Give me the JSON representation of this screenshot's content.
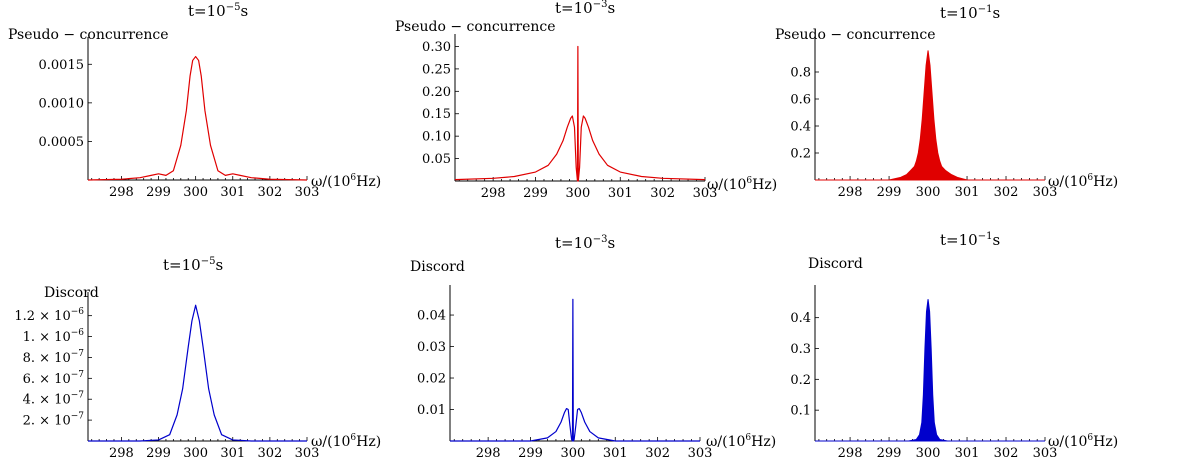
{
  "chart_data": [
    {
      "type": "line",
      "title_base": "t=10",
      "title_exp": "−5",
      "title_unit": "s",
      "ylabel": "Pseudo − concurrence",
      "xlabel_base": "ω/(10",
      "xlabel_exp": "6",
      "xlabel_unit": "Hz)",
      "xlim": [
        297.1,
        303.0
      ],
      "ylim": [
        0,
        0.00175
      ],
      "xticks": [
        298,
        299,
        300,
        301,
        302,
        303
      ],
      "yticks": [
        {
          "v": 0.0005,
          "t": "0.0005"
        },
        {
          "v": 0.001,
          "t": "0.0010"
        },
        {
          "v": 0.0015,
          "t": "0.0015"
        }
      ],
      "color": "#e00000",
      "series": [
        {
          "x": [
            297.1,
            298.0,
            298.5,
            298.8,
            299.0,
            299.2,
            299.4,
            299.6,
            299.75,
            299.85,
            299.92,
            300.0,
            300.08,
            300.15,
            300.25,
            300.4,
            300.6,
            300.8,
            301.0,
            301.2,
            301.5,
            302.0,
            303.0
          ],
          "y": [
            0.0,
            1e-05,
            3e-05,
            6e-05,
            8e-05,
            6e-05,
            0.00012,
            0.00045,
            0.0009,
            0.00135,
            0.00155,
            0.0016,
            0.00155,
            0.00135,
            0.0009,
            0.00045,
            0.00012,
            6e-05,
            8e-05,
            6e-05,
            3e-05,
            1e-05,
            0.0
          ]
        }
      ]
    },
    {
      "type": "line",
      "title_base": "t=10",
      "title_exp": "−3",
      "title_unit": "s",
      "ylabel": "Pseudo − concurrence",
      "xlabel_base": "ω/(10",
      "xlabel_exp": "6",
      "xlabel_unit": "Hz)",
      "xlim": [
        297.1,
        303.0
      ],
      "ylim": [
        0,
        0.31
      ],
      "xticks": [
        298,
        299,
        300,
        301,
        302,
        303
      ],
      "yticks": [
        {
          "v": 0.05,
          "t": "0.05"
        },
        {
          "v": 0.1,
          "t": "0.10"
        },
        {
          "v": 0.15,
          "t": "0.15"
        },
        {
          "v": 0.2,
          "t": "0.20"
        },
        {
          "v": 0.25,
          "t": "0.25"
        },
        {
          "v": 0.3,
          "t": "0.30"
        }
      ],
      "color": "#e00000",
      "series": [
        {
          "x": [
            297.1,
            298.0,
            298.5,
            299.0,
            299.3,
            299.5,
            299.65,
            299.75,
            299.83,
            299.87,
            299.92,
            299.96,
            299.99,
            300.0,
            300.01,
            300.04,
            300.08,
            300.13,
            300.17,
            300.25,
            300.35,
            300.5,
            300.7,
            301.0,
            301.5,
            302.0,
            303.0
          ],
          "y": [
            0.003,
            0.006,
            0.01,
            0.02,
            0.035,
            0.06,
            0.09,
            0.12,
            0.14,
            0.145,
            0.12,
            0.03,
            0.0,
            0.3,
            0.0,
            0.03,
            0.12,
            0.145,
            0.14,
            0.12,
            0.09,
            0.06,
            0.035,
            0.02,
            0.01,
            0.006,
            0.003
          ]
        }
      ]
    },
    {
      "type": "line",
      "title_base": "t=10",
      "title_exp": "−1",
      "title_unit": "s",
      "ylabel": "Pseudo − concurrence",
      "xlabel_base": "ω/(10",
      "xlabel_exp": "6",
      "xlabel_unit": "Hz)",
      "xlim": [
        297.1,
        303.0
      ],
      "ylim": [
        0,
        1.0
      ],
      "xticks": [
        298,
        299,
        300,
        301,
        302,
        303
      ],
      "yticks": [
        {
          "v": 0.2,
          "t": "0.2"
        },
        {
          "v": 0.4,
          "t": "0.4"
        },
        {
          "v": 0.6,
          "t": "0.6"
        },
        {
          "v": 0.8,
          "t": "0.8"
        }
      ],
      "color": "#e00000",
      "fill": true,
      "series": [
        {
          "x": [
            297.1,
            299.0,
            299.3,
            299.45,
            299.55,
            299.65,
            299.7,
            299.75,
            299.8,
            299.85,
            299.9,
            299.95,
            300.0,
            300.05,
            300.1,
            300.15,
            300.2,
            300.25,
            300.3,
            300.35,
            300.45,
            300.6,
            300.75,
            301.0,
            303.0
          ],
          "y": [
            0.0,
            0.0,
            0.02,
            0.04,
            0.07,
            0.1,
            0.14,
            0.2,
            0.3,
            0.45,
            0.65,
            0.85,
            0.96,
            0.85,
            0.65,
            0.45,
            0.3,
            0.2,
            0.14,
            0.1,
            0.07,
            0.04,
            0.02,
            0.0,
            0.0
          ]
        }
      ]
    },
    {
      "type": "line",
      "title_base": "t=10",
      "title_exp": "−5",
      "title_unit": "s",
      "ylabel": "Discord",
      "xlabel_base": "ω/(10",
      "xlabel_exp": "6",
      "xlabel_unit": "Hz)",
      "xlim": [
        297.1,
        303.0
      ],
      "ylim": [
        0,
        1.35e-06
      ],
      "xticks": [
        298,
        299,
        300,
        301,
        302,
        303
      ],
      "yticks": [
        {
          "v": 2e-07,
          "m": "2.",
          "e": "−7"
        },
        {
          "v": 4e-07,
          "m": "4.",
          "e": "−7"
        },
        {
          "v": 6e-07,
          "m": "6.",
          "e": "−7"
        },
        {
          "v": 8e-07,
          "m": "8.",
          "e": "−7"
        },
        {
          "v": 1e-06,
          "m": "1.",
          "e": "−6"
        },
        {
          "v": 1.2e-06,
          "m": "1.2",
          "e": "−6"
        }
      ],
      "color": "#0000cc",
      "series": [
        {
          "x": [
            297.1,
            298.5,
            299.0,
            299.3,
            299.5,
            299.65,
            299.8,
            299.9,
            300.0,
            300.1,
            300.2,
            300.35,
            300.5,
            300.7,
            301.0,
            301.5,
            303.0
          ],
          "y": [
            0.0,
            0.0,
            1e-08,
            6e-08,
            2.5e-07,
            5e-07,
            9e-07,
            1.15e-06,
            1.3e-06,
            1.15e-06,
            9e-07,
            5e-07,
            2.5e-07,
            6e-08,
            1e-08,
            0.0,
            0.0
          ]
        }
      ]
    },
    {
      "type": "line",
      "title_base": "t=10",
      "title_exp": "−3",
      "title_unit": "s",
      "ylabel": "Discord",
      "xlabel_base": "ω/(10",
      "xlabel_exp": "6",
      "xlabel_unit": "Hz)",
      "xlim": [
        297.1,
        303.0
      ],
      "ylim": [
        0,
        0.047
      ],
      "xticks": [
        298,
        299,
        300,
        301,
        302,
        303
      ],
      "yticks": [
        {
          "v": 0.01,
          "t": "0.01"
        },
        {
          "v": 0.02,
          "t": "0.02"
        },
        {
          "v": 0.03,
          "t": "0.03"
        },
        {
          "v": 0.04,
          "t": "0.04"
        }
      ],
      "color": "#0000cc",
      "series": [
        {
          "x": [
            297.1,
            299.0,
            299.4,
            299.6,
            299.72,
            299.8,
            299.85,
            299.89,
            299.93,
            299.97,
            299.99,
            300.0,
            300.01,
            300.03,
            300.07,
            300.11,
            300.15,
            300.2,
            300.28,
            300.4,
            300.6,
            301.0,
            303.0
          ],
          "y": [
            0.0,
            0.0,
            0.001,
            0.003,
            0.006,
            0.009,
            0.0103,
            0.01,
            0.005,
            0.0005,
            0.0,
            0.045,
            0.0,
            0.0005,
            0.005,
            0.01,
            0.0103,
            0.009,
            0.006,
            0.003,
            0.001,
            0.0,
            0.0
          ]
        }
      ]
    },
    {
      "type": "line",
      "title_base": "t=10",
      "title_exp": "−1",
      "title_unit": "s",
      "ylabel": "Discord",
      "xlabel_base": "ω/(10",
      "xlabel_exp": "6",
      "xlabel_unit": "Hz)",
      "xlim": [
        297.1,
        303.0
      ],
      "ylim": [
        0,
        0.48
      ],
      "xticks": [
        298,
        299,
        300,
        301,
        302,
        303
      ],
      "yticks": [
        {
          "v": 0.1,
          "t": "0.1"
        },
        {
          "v": 0.2,
          "t": "0.2"
        },
        {
          "v": 0.3,
          "t": "0.3"
        },
        {
          "v": 0.4,
          "t": "0.4"
        }
      ],
      "color": "#0000cc",
      "fill": true,
      "series": [
        {
          "x": [
            297.1,
            299.5,
            299.7,
            299.78,
            299.84,
            299.88,
            299.92,
            299.96,
            300.0,
            300.04,
            300.08,
            300.12,
            300.16,
            300.22,
            300.3,
            300.5,
            303.0
          ],
          "y": [
            0.0,
            0.0,
            0.005,
            0.02,
            0.06,
            0.15,
            0.3,
            0.42,
            0.46,
            0.42,
            0.3,
            0.15,
            0.06,
            0.02,
            0.005,
            0.0,
            0.0
          ]
        }
      ]
    }
  ]
}
